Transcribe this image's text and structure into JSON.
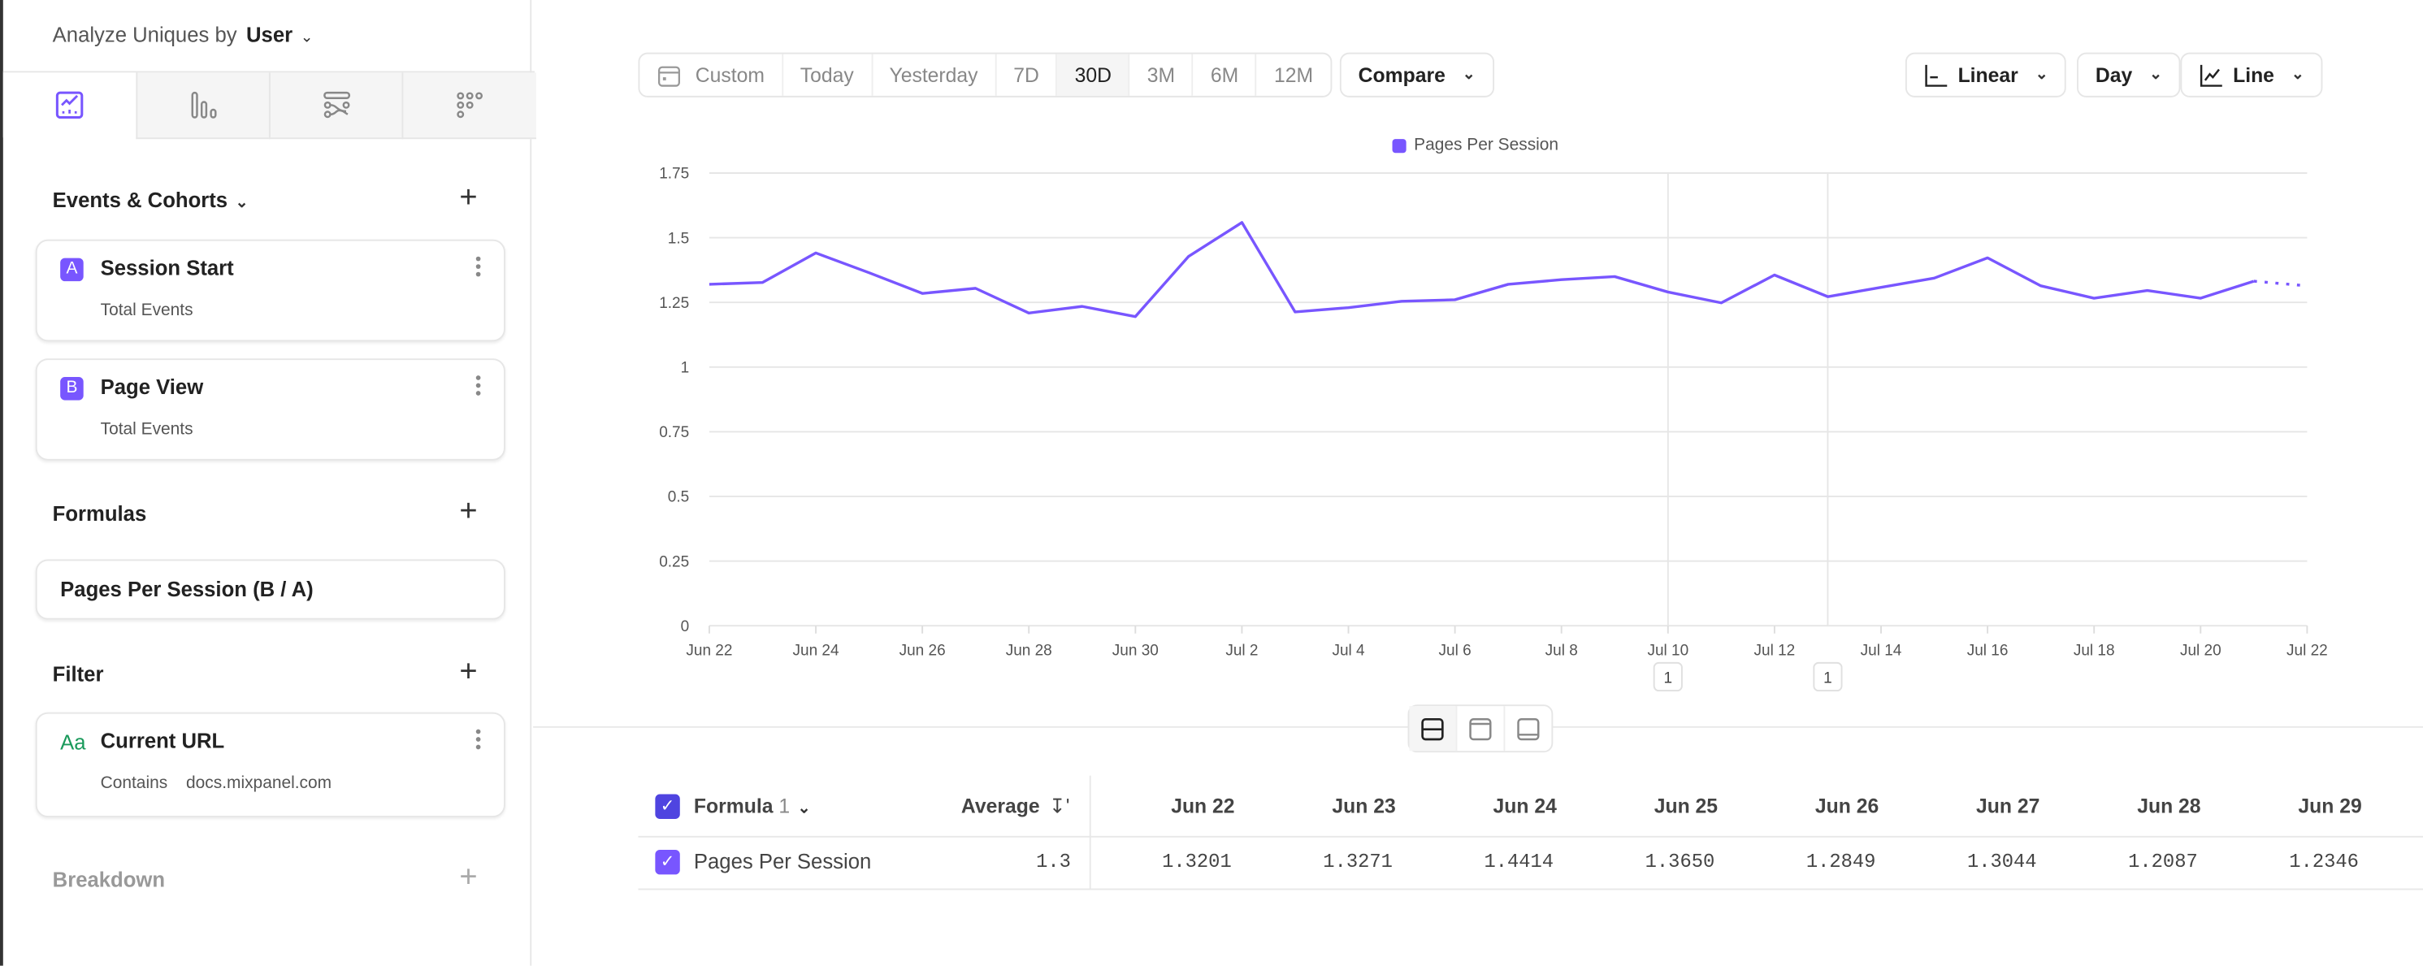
{
  "sidebar": {
    "analyze_label": "Analyze Uniques by",
    "analyze_value": "User",
    "tabs": [
      {
        "icon": "insights-line-chart-icon",
        "active": true
      },
      {
        "icon": "funnels-bar-icon",
        "active": false
      },
      {
        "icon": "flows-icon",
        "active": false
      },
      {
        "icon": "retention-grid-icon",
        "active": false
      }
    ],
    "events_title": "Events & Cohorts",
    "events": [
      {
        "badge": "A",
        "name": "Session Start",
        "measure": "Total Events"
      },
      {
        "badge": "B",
        "name": "Page View",
        "measure": "Total Events"
      }
    ],
    "formulas_title": "Formulas",
    "formula": "Pages Per Session (B / A)",
    "filter_title": "Filter",
    "filter": {
      "icon_text": "Aa",
      "property": "Current URL",
      "operator": "Contains",
      "value": "docs.mixpanel.com"
    },
    "breakdown_title": "Breakdown"
  },
  "toolbar": {
    "custom": "Custom",
    "ranges": [
      "Today",
      "Yesterday",
      "7D",
      "30D",
      "3M",
      "6M",
      "12M"
    ],
    "selected_range": "30D",
    "compare": "Compare",
    "scale": "Linear",
    "interval": "Day",
    "chart_type": "Line"
  },
  "colors": {
    "accent": "#7856ff",
    "checkbox_header": "#4f44e0",
    "string_icon": "#1a9a5b"
  },
  "chart_data": {
    "type": "line",
    "legend": "top-center",
    "grid": true,
    "ylim": [
      0,
      1.75
    ],
    "y_ticks": [
      "0",
      "0.25",
      "0.5",
      "0.75",
      "1",
      "1.25",
      "1.5",
      "1.75"
    ],
    "x_tick_labels": [
      "Jun 22",
      "Jun 24",
      "Jun 26",
      "Jun 28",
      "Jun 30",
      "Jul 2",
      "Jul 4",
      "Jul 6",
      "Jul 8",
      "Jul 10",
      "Jul 12",
      "Jul 14",
      "Jul 16",
      "Jul 18",
      "Jul 20",
      "Jul 22"
    ],
    "x": [
      "Jun 22",
      "Jun 23",
      "Jun 24",
      "Jun 25",
      "Jun 26",
      "Jun 27",
      "Jun 28",
      "Jun 29",
      "Jun 30",
      "Jul 1",
      "Jul 2",
      "Jul 3",
      "Jul 4",
      "Jul 5",
      "Jul 6",
      "Jul 7",
      "Jul 8",
      "Jul 9",
      "Jul 10",
      "Jul 11",
      "Jul 12",
      "Jul 13",
      "Jul 14",
      "Jul 15",
      "Jul 16",
      "Jul 17",
      "Jul 18",
      "Jul 19",
      "Jul 20",
      "Jul 21",
      "Jul 22"
    ],
    "series": [
      {
        "name": "Pages Per Session",
        "color": "#7856ff",
        "values": [
          1.3201,
          1.3271,
          1.4414,
          1.365,
          1.2849,
          1.3044,
          1.2087,
          1.2346,
          1.195,
          1.428,
          1.559,
          1.213,
          1.23,
          1.254,
          1.26,
          1.32,
          1.338,
          1.35,
          1.29,
          1.248,
          1.356,
          1.272,
          1.308,
          1.344,
          1.422,
          1.314,
          1.266,
          1.296,
          1.266,
          1.332,
          1.314
        ],
        "incomplete_last_point": true
      }
    ],
    "annotations": [
      {
        "x": "Jul 10",
        "label": "1"
      },
      {
        "x": "Jul 13",
        "label": "1"
      }
    ]
  },
  "table": {
    "header_label": "Formula",
    "header_count": "1",
    "average_label": "Average",
    "columns": [
      "Jun 22",
      "Jun 23",
      "Jun 24",
      "Jun 25",
      "Jun 26",
      "Jun 27",
      "Jun 28",
      "Jun 29"
    ],
    "rows": [
      {
        "name": "Pages Per Session",
        "average": "1.3",
        "values": [
          "1.3201",
          "1.3271",
          "1.4414",
          "1.3650",
          "1.2849",
          "1.3044",
          "1.2087",
          "1.2346"
        ]
      }
    ]
  }
}
